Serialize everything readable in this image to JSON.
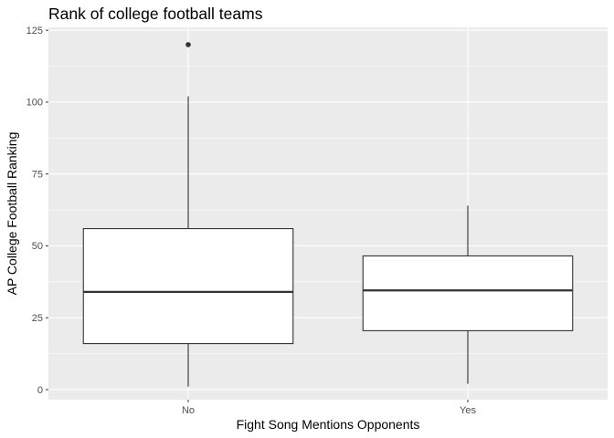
{
  "chart_data": {
    "type": "boxplot",
    "title": "Rank of college football teams",
    "xlabel": "Fight Song Mentions Opponents",
    "ylabel": "AP College Football Ranking",
    "categories": [
      "No",
      "Yes"
    ],
    "yticks": [
      0,
      25,
      50,
      75,
      100,
      125
    ],
    "ylim": [
      -3.5,
      126
    ],
    "grid": true,
    "boxes": [
      {
        "category": "No",
        "min": 1,
        "q1": 16,
        "median": 34,
        "q3": 56,
        "max": 102,
        "outliers": [
          120
        ]
      },
      {
        "category": "Yes",
        "min": 2,
        "q1": 20.5,
        "median": 34.5,
        "q3": 46.5,
        "max": 64,
        "outliers": []
      }
    ],
    "colors": {
      "panel": "#ebebeb",
      "grid_major": "#ffffff",
      "box_fill": "#ffffff",
      "box_stroke": "#333333",
      "tick_label": "#4d4d4d"
    }
  }
}
